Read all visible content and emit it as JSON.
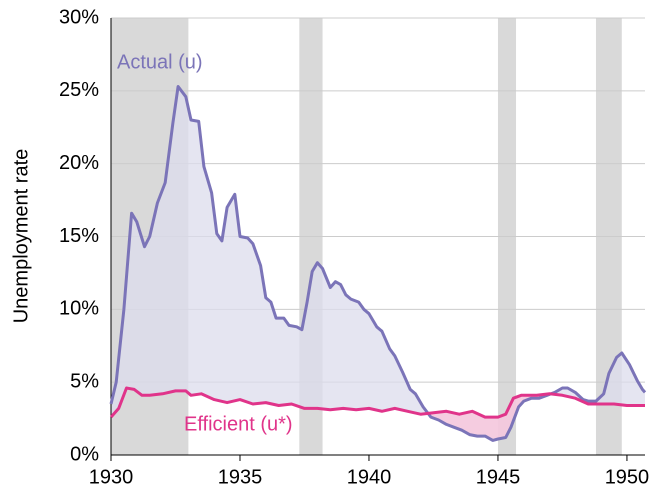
{
  "chart_data": {
    "type": "line",
    "y_label": "Unemployment rate",
    "xlim": [
      1930,
      1950.7
    ],
    "xticks": [
      1930,
      1935,
      1940,
      1945,
      1950
    ],
    "ylim": [
      0,
      30
    ],
    "yticks": [
      {
        "value": 0,
        "label": "0%"
      },
      {
        "value": 5,
        "label": "5%"
      },
      {
        "value": 10,
        "label": "10%"
      },
      {
        "value": 15,
        "label": "15%"
      },
      {
        "value": 20,
        "label": "20%"
      },
      {
        "value": 25,
        "label": "25%"
      },
      {
        "value": 30,
        "label": "30%"
      }
    ],
    "grid": true,
    "recessions": [
      [
        1930,
        1933.0
      ],
      [
        1937.3,
        1938.2
      ],
      [
        1945.0,
        1945.7
      ],
      [
        1948.8,
        1949.8
      ]
    ],
    "recession_color": "#d9d9d9",
    "series": [
      {
        "name": "Actual (u)",
        "color": "#7b74b8",
        "x": [
          1930.0,
          1930.2,
          1930.5,
          1930.8,
          1931.0,
          1931.3,
          1931.5,
          1931.8,
          1932.1,
          1932.4,
          1932.6,
          1932.9,
          1933.1,
          1933.4,
          1933.6,
          1933.9,
          1934.1,
          1934.3,
          1934.5,
          1934.8,
          1935.0,
          1935.3,
          1935.5,
          1935.8,
          1936.0,
          1936.2,
          1936.4,
          1936.7,
          1936.9,
          1937.2,
          1937.4,
          1937.6,
          1937.8,
          1938.0,
          1938.2,
          1938.5,
          1938.7,
          1938.9,
          1939.1,
          1939.3,
          1939.6,
          1939.8,
          1940.0,
          1940.3,
          1940.5,
          1940.8,
          1941.0,
          1941.3,
          1941.6,
          1941.8,
          1942.1,
          1942.4,
          1942.7,
          1943.0,
          1943.3,
          1943.6,
          1943.9,
          1944.2,
          1944.5,
          1944.8,
          1945.0,
          1945.3,
          1945.5,
          1945.8,
          1946.0,
          1946.3,
          1946.6,
          1946.9,
          1947.2,
          1947.5,
          1947.7,
          1948.0,
          1948.3,
          1948.5,
          1948.8,
          1949.1,
          1949.3,
          1949.6,
          1949.8,
          1950.1,
          1950.4,
          1950.6,
          1950.7
        ],
        "values": [
          3.5,
          5,
          10,
          16.6,
          16,
          14.3,
          15,
          17.3,
          18.7,
          22.8,
          25.3,
          24.6,
          23,
          22.9,
          19.8,
          18,
          15.2,
          14.7,
          17,
          17.9,
          15,
          14.9,
          14.5,
          13,
          10.8,
          10.5,
          9.4,
          9.4,
          8.9,
          8.8,
          8.6,
          10.5,
          12.6,
          13.2,
          12.8,
          11.5,
          11.9,
          11.7,
          11,
          10.7,
          10.5,
          10,
          9.7,
          8.8,
          8.5,
          7.3,
          6.8,
          5.7,
          4.5,
          4.2,
          3.3,
          2.6,
          2.4,
          2.1,
          1.9,
          1.7,
          1.4,
          1.3,
          1.3,
          1.0,
          1.1,
          1.2,
          1.9,
          3.3,
          3.7,
          3.9,
          3.9,
          4.1,
          4.3,
          4.6,
          4.6,
          4.3,
          3.8,
          3.7,
          3.7,
          4.2,
          5.6,
          6.7,
          7.0,
          6.2,
          5.1,
          4.5,
          4.3
        ]
      },
      {
        "name": "Efficient (u*)",
        "color": "#e0348a",
        "x": [
          1930.0,
          1930.3,
          1930.6,
          1930.9,
          1931.2,
          1931.5,
          1932.0,
          1932.5,
          1932.9,
          1933.1,
          1933.5,
          1934.0,
          1934.5,
          1935.0,
          1935.5,
          1936.0,
          1936.5,
          1937.0,
          1937.5,
          1938.0,
          1938.5,
          1939.0,
          1939.5,
          1940.0,
          1940.5,
          1941.0,
          1941.5,
          1942.0,
          1942.5,
          1943.0,
          1943.5,
          1944.0,
          1944.5,
          1945.0,
          1945.3,
          1945.6,
          1945.9,
          1946.5,
          1947.0,
          1947.5,
          1948.0,
          1948.5,
          1949.0,
          1949.5,
          1950.0,
          1950.7
        ],
        "values": [
          2.6,
          3.2,
          4.6,
          4.5,
          4.1,
          4.1,
          4.2,
          4.4,
          4.4,
          4.1,
          4.2,
          3.8,
          3.6,
          3.8,
          3.5,
          3.6,
          3.4,
          3.5,
          3.2,
          3.2,
          3.1,
          3.2,
          3.1,
          3.2,
          3.0,
          3.2,
          3.0,
          2.8,
          2.9,
          3.0,
          2.8,
          3.0,
          2.6,
          2.6,
          2.8,
          3.9,
          4.1,
          4.1,
          4.2,
          4.1,
          3.9,
          3.5,
          3.5,
          3.5,
          3.4,
          3.4
        ]
      }
    ],
    "fill_above": "#dcdcec",
    "fill_below": "#f4c6dd"
  }
}
